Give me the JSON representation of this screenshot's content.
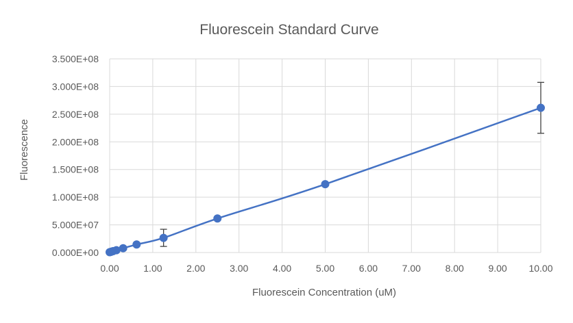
{
  "chart_data": {
    "type": "scatter",
    "title": "Fluorescein Standard Curve",
    "xlabel": "Fluorescein Concentration (uM)",
    "ylabel": "Fluorescence",
    "xlim": [
      0,
      10
    ],
    "ylim": [
      0,
      350000000
    ],
    "x_ticks": [
      "0.00",
      "1.00",
      "2.00",
      "3.00",
      "4.00",
      "5.00",
      "6.00",
      "7.00",
      "8.00",
      "9.00",
      "10.00"
    ],
    "y_ticks": [
      "0.000E+00",
      "5.000E+07",
      "1.000E+08",
      "1.500E+08",
      "2.000E+08",
      "2.500E+08",
      "3.000E+08",
      "3.500E+08"
    ],
    "grid": true,
    "legend": "none",
    "series": [
      {
        "color": "#4472C4",
        "x": [
          0,
          0.01953,
          0.03906,
          0.07813,
          0.15625,
          0.3125,
          0.625,
          1.25,
          2.5,
          5,
          10
        ],
        "y": [
          600000,
          1000000,
          1600000,
          2500000,
          4200000,
          7800000,
          14500000,
          26500000,
          61500000,
          123500000,
          261500000
        ],
        "error": [
          300000,
          300000,
          400000,
          500000,
          1000000,
          1500000,
          2500000,
          15500000,
          2500000,
          3000000,
          46000000
        ]
      }
    ]
  }
}
